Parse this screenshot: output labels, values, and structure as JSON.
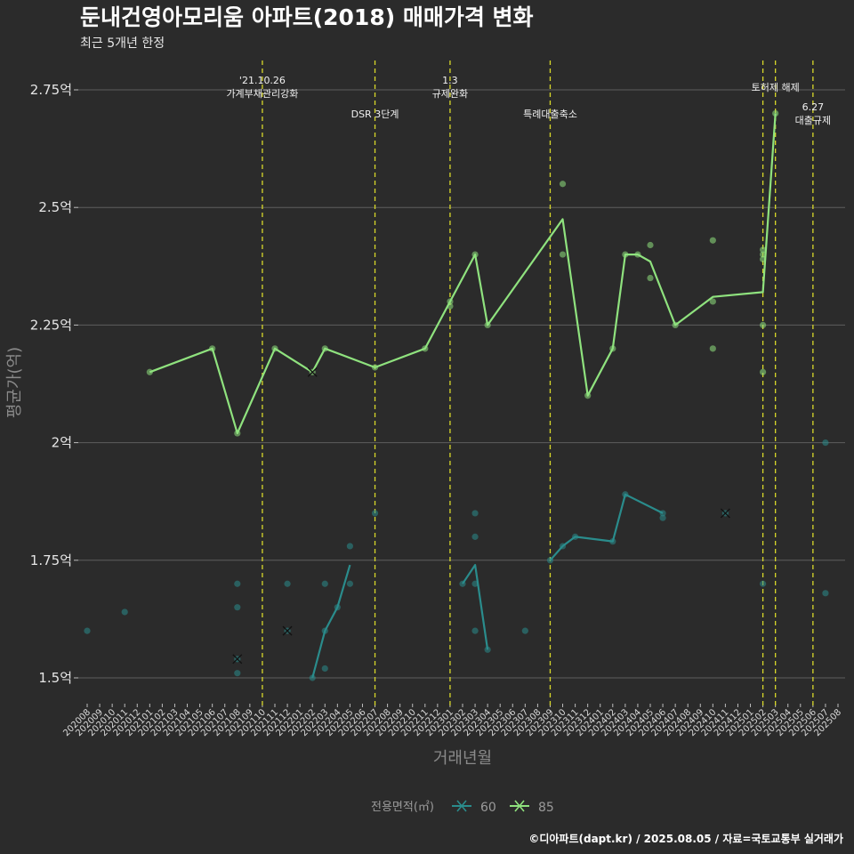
{
  "chart_data": {
    "type": "line",
    "title": "둔내건영아모리움 아파트(2018) 매매가격 변화",
    "subtitle": "최근 5개년 한정",
    "xlabel": "거래년월",
    "ylabel": "평균가(억)",
    "caption": "©디아파트(dapt.kr) / 2025.08.05 / 자료=국토교통부 실거래가",
    "legend": {
      "title": "전용면적(㎡)",
      "position": "bottom"
    },
    "grid": "horizontal",
    "ylim": [
      1.45,
      2.8
    ],
    "y_ticks": [
      {
        "value": 1.5,
        "label": "1.5억"
      },
      {
        "value": 1.75,
        "label": "1.75억"
      },
      {
        "value": 2.0,
        "label": "2억"
      },
      {
        "value": 2.25,
        "label": "2.25억"
      },
      {
        "value": 2.5,
        "label": "2.5억"
      },
      {
        "value": 2.75,
        "label": "2.75억"
      }
    ],
    "categories": [
      "202008",
      "202009",
      "202010",
      "202011",
      "202012",
      "202101",
      "202102",
      "202103",
      "202104",
      "202105",
      "202106",
      "202107",
      "202108",
      "202109",
      "202110",
      "202111",
      "202112",
      "202201",
      "202202",
      "202203",
      "202204",
      "202205",
      "202206",
      "202207",
      "202208",
      "202209",
      "202210",
      "202211",
      "202212",
      "202301",
      "202302",
      "202303",
      "202304",
      "202305",
      "202306",
      "202307",
      "202308",
      "202309",
      "202310",
      "202311",
      "202312",
      "202401",
      "202402",
      "202403",
      "202404",
      "202405",
      "202406",
      "202407",
      "202408",
      "202409",
      "202410",
      "202411",
      "202412",
      "202501",
      "202502",
      "202503",
      "202504",
      "202505",
      "202506",
      "202507",
      "202508"
    ],
    "events": [
      {
        "x": "202110",
        "lines": [
          "'21.10.26",
          "가계부채관리강화"
        ],
        "pos": "top"
      },
      {
        "x": "202207",
        "lines": [
          "DSR 3단계"
        ],
        "pos": "mid"
      },
      {
        "x": "202301",
        "lines": [
          "1.3",
          "규제완화"
        ],
        "pos": "top"
      },
      {
        "x": "202309",
        "lines": [
          "특례대출축소"
        ],
        "pos": "mid"
      },
      {
        "x": "202502",
        "lines": [],
        "pos": "none"
      },
      {
        "x": "202503",
        "lines": [
          "토허제 해제"
        ],
        "pos": "top"
      },
      {
        "x": "202506",
        "lines": [
          "6.27",
          "대출규제"
        ],
        "pos": "low"
      }
    ],
    "series": [
      {
        "name": "60",
        "color": "#2a8c8c",
        "line": [
          {
            "x": "202202",
            "y": 1.5
          },
          {
            "x": "202203",
            "y": 1.6
          },
          {
            "x": "202204",
            "y": 1.65
          },
          {
            "x": "202205",
            "y": 1.74
          },
          {
            "x": "202302",
            "y": 1.7
          },
          {
            "x": "202303",
            "y": 1.74
          },
          {
            "x": "202304",
            "y": 1.56
          },
          {
            "x": "202309",
            "y": 1.75
          },
          {
            "x": "202310",
            "y": 1.78
          },
          {
            "x": "202311",
            "y": 1.8
          },
          {
            "x": "202402",
            "y": 1.79
          },
          {
            "x": "202403",
            "y": 1.89
          },
          {
            "x": "202406",
            "y": 1.85
          }
        ],
        "line_breaks_after": [
          3,
          6
        ],
        "points": [
          {
            "x": "202008",
            "y": 1.6
          },
          {
            "x": "202011",
            "y": 1.64
          },
          {
            "x": "202108",
            "y": 1.51
          },
          {
            "x": "202108",
            "y": 1.54
          },
          {
            "x": "202108",
            "y": 1.65
          },
          {
            "x": "202108",
            "y": 1.7
          },
          {
            "x": "202112",
            "y": 1.6
          },
          {
            "x": "202112",
            "y": 1.7
          },
          {
            "x": "202202",
            "y": 1.5
          },
          {
            "x": "202203",
            "y": 1.52
          },
          {
            "x": "202203",
            "y": 1.6
          },
          {
            "x": "202203",
            "y": 1.7
          },
          {
            "x": "202204",
            "y": 1.65
          },
          {
            "x": "202205",
            "y": 1.7
          },
          {
            "x": "202205",
            "y": 1.78
          },
          {
            "x": "202207",
            "y": 1.85
          },
          {
            "x": "202302",
            "y": 1.7
          },
          {
            "x": "202303",
            "y": 1.6
          },
          {
            "x": "202303",
            "y": 1.7
          },
          {
            "x": "202303",
            "y": 1.8
          },
          {
            "x": "202303",
            "y": 1.85
          },
          {
            "x": "202304",
            "y": 1.56
          },
          {
            "x": "202307",
            "y": 1.6
          },
          {
            "x": "202309",
            "y": 1.75
          },
          {
            "x": "202310",
            "y": 1.78
          },
          {
            "x": "202311",
            "y": 1.8
          },
          {
            "x": "202402",
            "y": 1.79
          },
          {
            "x": "202403",
            "y": 1.89
          },
          {
            "x": "202406",
            "y": 1.84
          },
          {
            "x": "202406",
            "y": 1.85
          },
          {
            "x": "202411",
            "y": 1.85
          },
          {
            "x": "202502",
            "y": 1.7
          },
          {
            "x": "202507",
            "y": 1.68
          },
          {
            "x": "202507",
            "y": 2.0
          }
        ],
        "crosses": [
          {
            "x": "202108",
            "y": 1.54
          },
          {
            "x": "202112",
            "y": 1.6
          },
          {
            "x": "202411",
            "y": 1.85
          }
        ]
      },
      {
        "name": "85",
        "color": "#8fe27e",
        "line": [
          {
            "x": "202101",
            "y": 2.15
          },
          {
            "x": "202106",
            "y": 2.2
          },
          {
            "x": "202108",
            "y": 2.02
          },
          {
            "x": "202111",
            "y": 2.2
          },
          {
            "x": "202202",
            "y": 2.15
          },
          {
            "x": "202203",
            "y": 2.2
          },
          {
            "x": "202207",
            "y": 2.16
          },
          {
            "x": "202211",
            "y": 2.2
          },
          {
            "x": "202301",
            "y": 2.3
          },
          {
            "x": "202303",
            "y": 2.4
          },
          {
            "x": "202304",
            "y": 2.25
          },
          {
            "x": "202310",
            "y": 2.475
          },
          {
            "x": "202312",
            "y": 2.1
          },
          {
            "x": "202402",
            "y": 2.2
          },
          {
            "x": "202403",
            "y": 2.4
          },
          {
            "x": "202404",
            "y": 2.4
          },
          {
            "x": "202405",
            "y": 2.385
          },
          {
            "x": "202407",
            "y": 2.25
          },
          {
            "x": "202410",
            "y": 2.31
          },
          {
            "x": "202502",
            "y": 2.32
          },
          {
            "x": "202503",
            "y": 2.7
          }
        ],
        "line_breaks_after": [],
        "points": [
          {
            "x": "202101",
            "y": 2.15
          },
          {
            "x": "202106",
            "y": 2.2
          },
          {
            "x": "202108",
            "y": 2.02
          },
          {
            "x": "202111",
            "y": 2.2
          },
          {
            "x": "202202",
            "y": 2.15
          },
          {
            "x": "202203",
            "y": 2.2
          },
          {
            "x": "202207",
            "y": 2.16
          },
          {
            "x": "202211",
            "y": 2.2
          },
          {
            "x": "202301",
            "y": 2.29
          },
          {
            "x": "202301",
            "y": 2.3
          },
          {
            "x": "202303",
            "y": 2.4
          },
          {
            "x": "202304",
            "y": 2.25
          },
          {
            "x": "202310",
            "y": 2.4
          },
          {
            "x": "202310",
            "y": 2.55
          },
          {
            "x": "202312",
            "y": 2.1
          },
          {
            "x": "202402",
            "y": 2.2
          },
          {
            "x": "202403",
            "y": 2.4
          },
          {
            "x": "202404",
            "y": 2.4
          },
          {
            "x": "202405",
            "y": 2.35
          },
          {
            "x": "202405",
            "y": 2.42
          },
          {
            "x": "202407",
            "y": 2.25
          },
          {
            "x": "202410",
            "y": 2.2
          },
          {
            "x": "202410",
            "y": 2.3
          },
          {
            "x": "202410",
            "y": 2.43
          },
          {
            "x": "202502",
            "y": 2.15
          },
          {
            "x": "202502",
            "y": 2.25
          },
          {
            "x": "202502",
            "y": 2.39
          },
          {
            "x": "202502",
            "y": 2.4
          },
          {
            "x": "202502",
            "y": 2.41
          },
          {
            "x": "202503",
            "y": 2.7
          }
        ],
        "crosses": [
          {
            "x": "202202",
            "y": 2.15
          }
        ]
      }
    ]
  }
}
